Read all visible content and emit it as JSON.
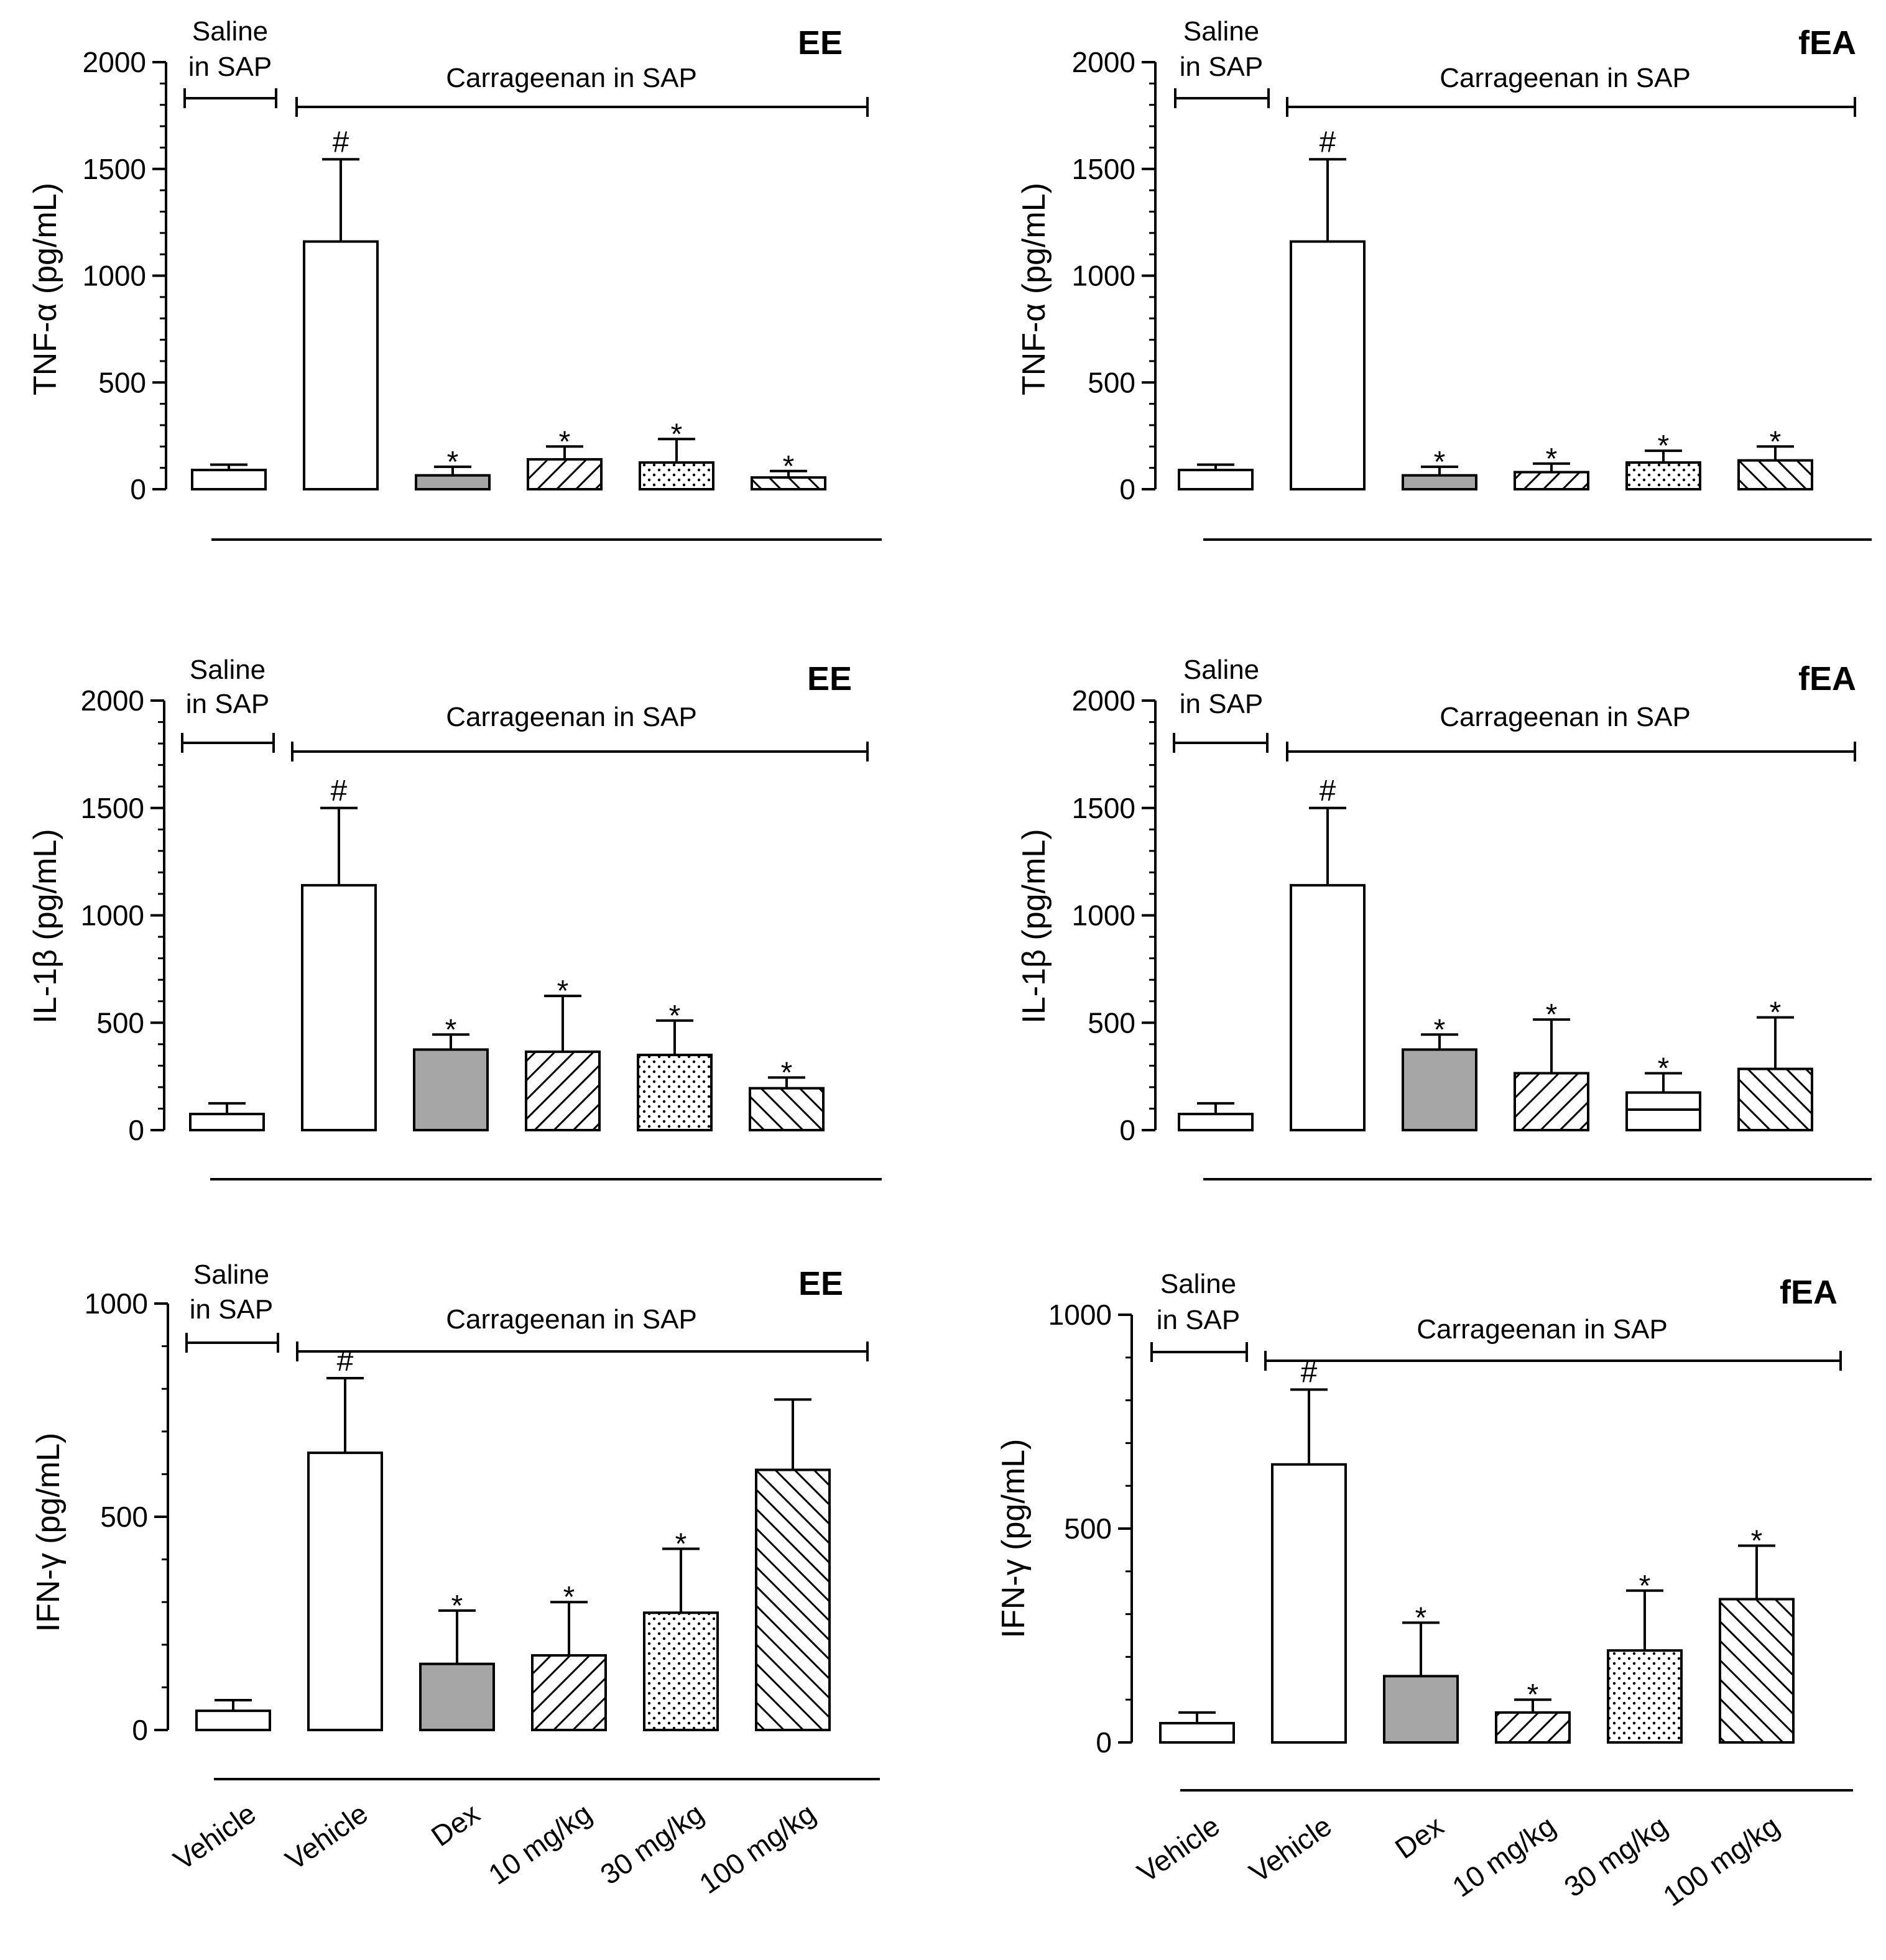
{
  "figure": {
    "categories": [
      "Vehicle",
      "Vehicle",
      "Dex",
      "10 mg/kg",
      "30 mg/kg",
      "100 mg/kg"
    ],
    "saline_label": [
      "Saline",
      "in SAP"
    ],
    "carrageenan_label": "Carrageenan in SAP",
    "colors": {
      "dex_fill": "#a6a6a6",
      "bar_stroke": "#000000",
      "background": "#ffffff"
    },
    "patterns": [
      "white",
      "white",
      "gray",
      "diagonal-hatch",
      "dots",
      "back-diagonal-hatch"
    ]
  },
  "chart_data": [
    {
      "type": "bar",
      "panel": "EE",
      "ylabel": "TNF-α (pg/mL)",
      "ylim": [
        0,
        2000
      ],
      "yticks": [
        0,
        500,
        1000,
        1500,
        2000
      ],
      "minor_step": 100,
      "categories": [
        "Vehicle",
        "Vehicle",
        "Dex",
        "10 mg/kg",
        "30 mg/kg",
        "100 mg/kg"
      ],
      "values": [
        90,
        1160,
        65,
        140,
        125,
        55
      ],
      "errors": [
        25,
        385,
        40,
        60,
        110,
        30
      ],
      "annotations": [
        "",
        "#",
        "*",
        "*",
        "*",
        "*"
      ],
      "patterns": [
        "white",
        "white",
        "gray",
        "diag",
        "dots",
        "diag-back"
      ]
    },
    {
      "type": "bar",
      "panel": "fEA",
      "ylabel": "TNF-α (pg/mL)",
      "ylim": [
        0,
        2000
      ],
      "yticks": [
        0,
        500,
        1000,
        1500,
        2000
      ],
      "minor_step": 100,
      "categories": [
        "Vehicle",
        "Vehicle",
        "Dex",
        "10 mg/kg",
        "30 mg/kg",
        "100 mg/kg"
      ],
      "values": [
        90,
        1160,
        65,
        80,
        125,
        135
      ],
      "errors": [
        25,
        385,
        40,
        40,
        55,
        65
      ],
      "annotations": [
        "",
        "#",
        "*",
        "*",
        "*",
        "*"
      ],
      "patterns": [
        "white",
        "white",
        "gray",
        "diag",
        "dots",
        "diag-back"
      ]
    },
    {
      "type": "bar",
      "panel": "EE",
      "ylabel": "IL-1β (pg/mL)",
      "ylim": [
        0,
        2000
      ],
      "yticks": [
        0,
        500,
        1000,
        1500,
        2000
      ],
      "minor_step": 100,
      "categories": [
        "Vehicle",
        "Vehicle",
        "Dex",
        "10 mg/kg",
        "30 mg/kg",
        "100 mg/kg"
      ],
      "values": [
        75,
        1140,
        375,
        365,
        350,
        195
      ],
      "errors": [
        50,
        360,
        70,
        260,
        160,
        50
      ],
      "annotations": [
        "",
        "#",
        "*",
        "*",
        "*",
        "*"
      ],
      "patterns": [
        "white",
        "white",
        "gray",
        "diag",
        "dots",
        "diag-back"
      ]
    },
    {
      "type": "bar",
      "panel": "fEA",
      "ylabel": "IL-1β (pg/mL)",
      "ylim": [
        0,
        2000
      ],
      "yticks": [
        0,
        500,
        1000,
        1500,
        2000
      ],
      "minor_step": 100,
      "categories": [
        "Vehicle",
        "Vehicle",
        "Dex",
        "10 mg/kg",
        "30 mg/kg",
        "100 mg/kg"
      ],
      "values": [
        75,
        1140,
        375,
        265,
        175,
        285
      ],
      "errors": [
        50,
        360,
        70,
        250,
        90,
        240
      ],
      "annotations": [
        "",
        "#",
        "*",
        "*",
        "*",
        "*"
      ],
      "patterns": [
        "white",
        "white",
        "gray",
        "diag",
        "hlines",
        "diag-back"
      ]
    },
    {
      "type": "bar",
      "panel": "EE",
      "ylabel": "IFN-γ (pg/mL)",
      "ylim": [
        0,
        1000
      ],
      "yticks": [
        0,
        500,
        1000
      ],
      "minor_step": 100,
      "categories": [
        "Vehicle",
        "Vehicle",
        "Dex",
        "10 mg/kg",
        "30 mg/kg",
        "100 mg/kg"
      ],
      "values": [
        45,
        650,
        155,
        175,
        275,
        610
      ],
      "errors": [
        25,
        175,
        125,
        125,
        150,
        165
      ],
      "annotations": [
        "",
        "#",
        "*",
        "*",
        "*",
        ""
      ],
      "patterns": [
        "white",
        "white",
        "gray",
        "diag",
        "dots",
        "diag-back"
      ]
    },
    {
      "type": "bar",
      "panel": "fEA",
      "ylabel": "IFN-γ (pg/mL)",
      "ylim": [
        0,
        1000
      ],
      "yticks": [
        0,
        500,
        1000
      ],
      "minor_step": 100,
      "categories": [
        "Vehicle",
        "Vehicle",
        "Dex",
        "10 mg/kg",
        "30 mg/kg",
        "100 mg/kg"
      ],
      "values": [
        45,
        650,
        155,
        70,
        215,
        335
      ],
      "errors": [
        25,
        175,
        125,
        30,
        140,
        125
      ],
      "annotations": [
        "",
        "#",
        "*",
        "*",
        "*",
        "*"
      ],
      "patterns": [
        "white",
        "white",
        "gray",
        "diag",
        "dots",
        "diag-back"
      ]
    }
  ]
}
